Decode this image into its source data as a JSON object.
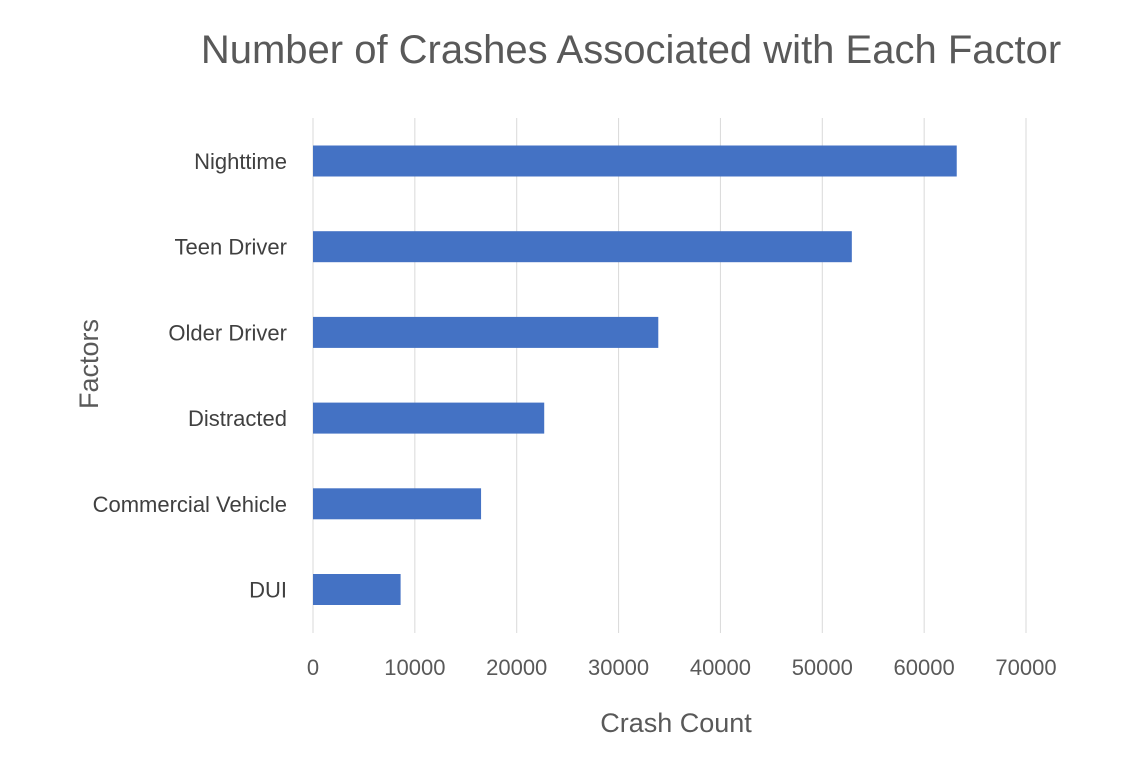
{
  "chart_data": {
    "type": "bar",
    "orientation": "horizontal",
    "title": "Number of Crashes Associated with Each Factor",
    "xlabel": "Crash Count",
    "ylabel": "Factors",
    "categories": [
      "Nighttime",
      "Teen Driver",
      "Older Driver",
      "Distracted",
      "Commercial Vehicle",
      "DUI"
    ],
    "values": [
      63200,
      52900,
      33900,
      22700,
      16500,
      8600
    ],
    "xlim": [
      0,
      70000
    ],
    "xticks": [
      "0",
      "10000",
      "20000",
      "30000",
      "40000",
      "50000",
      "60000",
      "70000"
    ],
    "grid": "vertical",
    "legend": "none",
    "bar_color": "#4472c4",
    "grid_color": "#d9d9d9",
    "text_color": "#595959"
  }
}
